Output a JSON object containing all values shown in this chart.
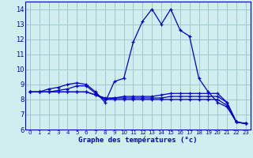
{
  "background_color": "#d0eef0",
  "grid_color": "#a0c8cc",
  "line_color": "#0000cc",
  "xlabel": "Graphe des températures (°c)",
  "ylim": [
    6,
    14.5
  ],
  "xlim": [
    -0.5,
    23.5
  ],
  "yticks": [
    6,
    7,
    8,
    9,
    10,
    11,
    12,
    13,
    14
  ],
  "xticks": [
    0,
    1,
    2,
    3,
    4,
    5,
    6,
    7,
    8,
    9,
    10,
    11,
    12,
    13,
    14,
    15,
    16,
    17,
    18,
    19,
    20,
    21,
    22,
    23
  ],
  "series": [
    {
      "x": [
        0,
        1,
        2,
        3,
        4,
        5,
        6,
        7,
        8,
        9,
        10,
        11,
        12,
        13,
        14,
        15,
        16,
        17,
        18,
        19,
        20,
        21,
        22,
        23
      ],
      "y": [
        8.5,
        8.5,
        8.7,
        8.8,
        9.0,
        9.1,
        9.0,
        8.5,
        7.8,
        9.2,
        9.4,
        11.8,
        13.2,
        14.0,
        13.0,
        14.0,
        12.6,
        12.2,
        9.4,
        8.5,
        7.8,
        7.5,
        6.5,
        6.4
      ]
    },
    {
      "x": [
        0,
        1,
        2,
        3,
        4,
        5,
        6,
        7,
        8,
        9,
        10,
        11,
        12,
        13,
        14,
        15,
        16,
        17,
        18,
        19,
        20,
        21,
        22,
        23
      ],
      "y": [
        8.5,
        8.5,
        8.5,
        8.6,
        8.7,
        8.9,
        8.9,
        8.4,
        8.0,
        8.1,
        8.2,
        8.2,
        8.2,
        8.2,
        8.3,
        8.4,
        8.4,
        8.4,
        8.4,
        8.4,
        8.4,
        7.8,
        6.5,
        6.4
      ]
    },
    {
      "x": [
        0,
        1,
        2,
        3,
        4,
        5,
        6,
        7,
        8,
        9,
        10,
        11,
        12,
        13,
        14,
        15,
        16,
        17,
        18,
        19,
        20,
        21,
        22,
        23
      ],
      "y": [
        8.5,
        8.5,
        8.5,
        8.5,
        8.5,
        8.5,
        8.5,
        8.3,
        8.1,
        8.1,
        8.1,
        8.1,
        8.1,
        8.1,
        8.1,
        8.2,
        8.2,
        8.2,
        8.2,
        8.2,
        8.2,
        7.8,
        6.5,
        6.4
      ]
    },
    {
      "x": [
        0,
        1,
        2,
        3,
        4,
        5,
        6,
        7,
        8,
        9,
        10,
        11,
        12,
        13,
        14,
        15,
        16,
        17,
        18,
        19,
        20,
        21,
        22,
        23
      ],
      "y": [
        8.5,
        8.5,
        8.5,
        8.5,
        8.5,
        8.5,
        8.5,
        8.3,
        8.0,
        8.0,
        8.0,
        8.0,
        8.0,
        8.0,
        8.0,
        8.0,
        8.0,
        8.0,
        8.0,
        8.0,
        8.0,
        7.6,
        6.5,
        6.4
      ]
    }
  ]
}
